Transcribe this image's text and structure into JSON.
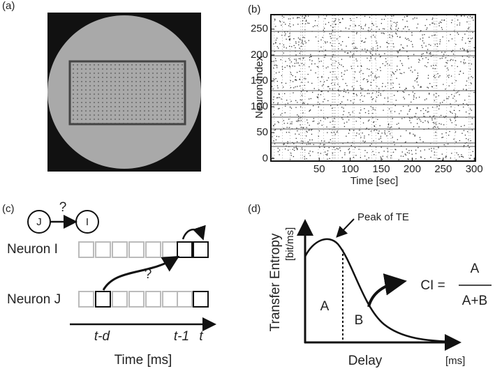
{
  "panels": {
    "a": {
      "label": "(a)"
    },
    "c": {
      "label": "(c)",
      "node_j": "J",
      "node_i": "I",
      "question_1": "?",
      "question_2": "?",
      "row_i": "Neuron I",
      "row_j": "Neuron J",
      "tick_td": "t-d",
      "tick_t1": "t-1",
      "tick_t": "t",
      "axis_label": "Time [ms]"
    },
    "d": {
      "label": "(d)",
      "y_label": "Transfer Entropy",
      "y_unit": "[bit/ms]",
      "peak_label": "Peak of TE",
      "area_a": "A",
      "area_b": "B",
      "ci_label": "CI =",
      "ci_numerator": "A",
      "ci_denominator": "A+B",
      "x_label": "Delay",
      "x_unit": "[ms]"
    },
    "b": {
      "label": "(b)"
    }
  },
  "chart_data": {
    "type": "raster",
    "xlabel": "Time [sec]",
    "ylabel": "Neuron Index",
    "xlim": [
      -28,
      302
    ],
    "ylim": [
      -5,
      278
    ],
    "xticks": [
      50,
      100,
      150,
      200,
      250,
      300
    ],
    "yticks": [
      0,
      50,
      100,
      150,
      200,
      250
    ]
  }
}
